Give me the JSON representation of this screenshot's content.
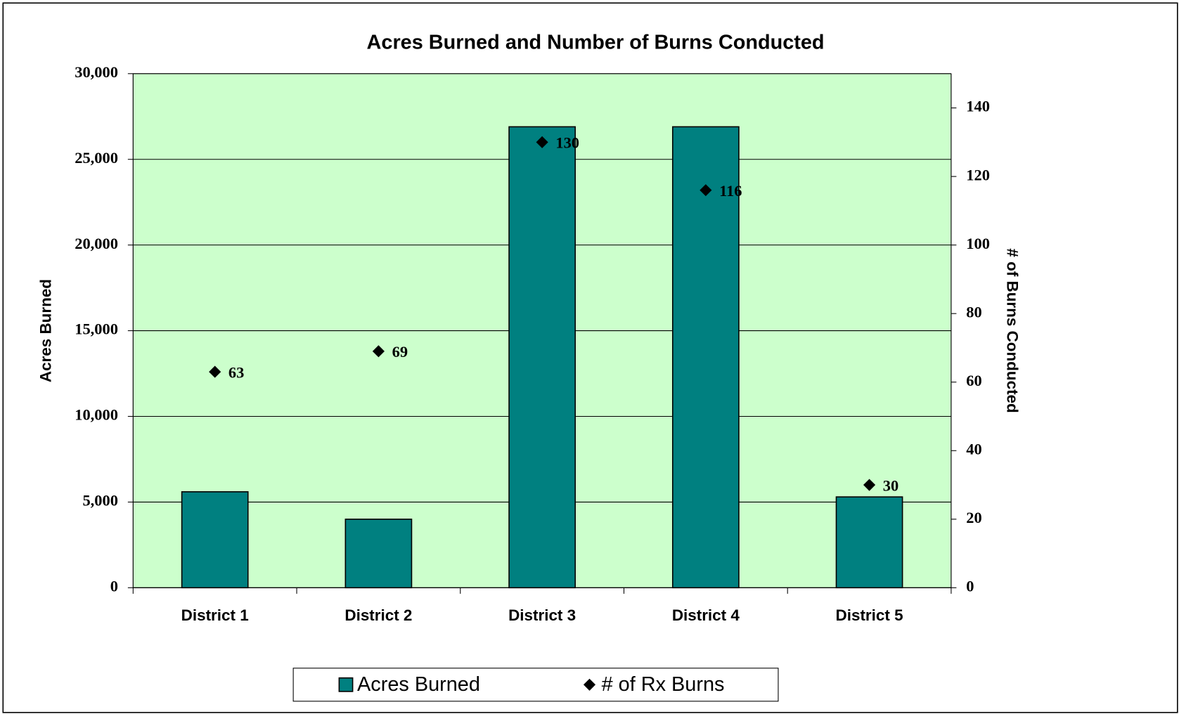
{
  "chart_data": {
    "type": "combo",
    "title": "Acres Burned and Number of Burns Conducted",
    "y_label": "Acres Burned",
    "y2_label": "# of Burns Conducted",
    "categories": [
      "District 1",
      "District 2",
      "District 3",
      "District 4",
      "District 5"
    ],
    "series": [
      {
        "name": "Acres Burned",
        "type": "bar",
        "color": "#008080",
        "values": [
          5600,
          4000,
          26900,
          26900,
          5300
        ]
      },
      {
        "name": "# of Rx Burns",
        "type": "scatter",
        "axis": "y2",
        "color": "#000000",
        "values": [
          63,
          69,
          130,
          116,
          30
        ]
      }
    ],
    "ylim": [
      0,
      30000
    ],
    "yticks": [
      0,
      {
        "value": 5000,
        "label": "5,000"
      },
      {
        "value": 10000,
        "label": "10,000"
      },
      {
        "value": 15000,
        "label": "15,000"
      },
      {
        "value": 20000,
        "label": "20,000"
      },
      {
        "value": 25000,
        "label": "25,000"
      },
      {
        "value": 30000,
        "label": "30,000"
      }
    ],
    "y2lim": [
      0,
      150
    ],
    "y2ticks": [
      0,
      20,
      40,
      60,
      80,
      100,
      120,
      140
    ],
    "grid": true,
    "plot_background": "#ccffcc",
    "legend": "bottom"
  }
}
